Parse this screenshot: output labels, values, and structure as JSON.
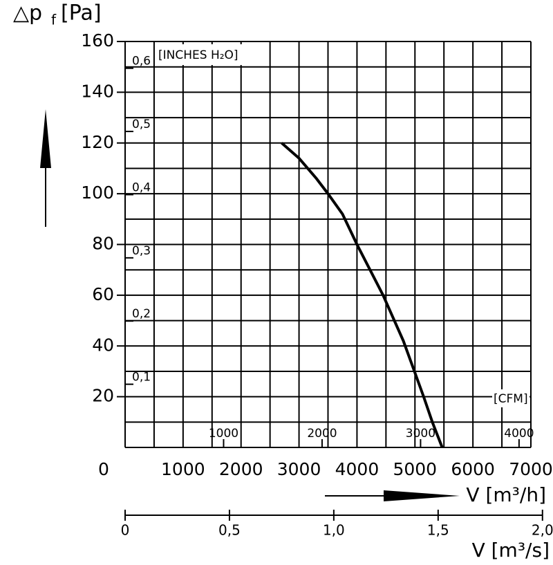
{
  "chart_data": {
    "type": "line",
    "y_label": "△p",
    "y_label_sub": "f",
    "y_label_unit": "[Pa]",
    "x_label": "V [m³/h]",
    "x2_label": "V [m³/s]",
    "y2_label": "[INCHES H₂O]",
    "x3_label": "[CFM]",
    "xlim": [
      0,
      7000
    ],
    "xticks": [
      0,
      1000,
      2000,
      3000,
      4000,
      5000,
      6000,
      7000
    ],
    "ylim": [
      0,
      160
    ],
    "yticks": [
      20,
      40,
      60,
      80,
      100,
      120,
      140,
      160
    ],
    "x2lim": [
      0,
      2.0
    ],
    "x2ticks": [
      0,
      {
        "value": 0.5,
        "label": "0,5"
      },
      {
        "value": 1.0,
        "label": "1,0"
      },
      {
        "value": 1.5,
        "label": "1,5"
      },
      {
        "value": 2.0,
        "label": "2,0"
      }
    ],
    "y2ticks": [
      {
        "value": 0.1,
        "label": "0,1"
      },
      {
        "value": 0.2,
        "label": "0,2"
      },
      {
        "value": 0.3,
        "label": "0,3"
      },
      {
        "value": 0.4,
        "label": "0,4"
      },
      {
        "value": 0.5,
        "label": "0,5"
      },
      {
        "value": 0.6,
        "label": "0,6"
      }
    ],
    "x3ticks": [
      1000,
      2000,
      3000,
      4000
    ],
    "grid": true,
    "series": [
      {
        "color": "#000000",
        "x": [
          2700,
          3000,
          3300,
          3500,
          3750,
          4000,
          4450,
          4800,
          5150,
          5300,
          5470
        ],
        "values": [
          120,
          114,
          106,
          100,
          92,
          80,
          60,
          42,
          20,
          10,
          0
        ]
      }
    ]
  }
}
